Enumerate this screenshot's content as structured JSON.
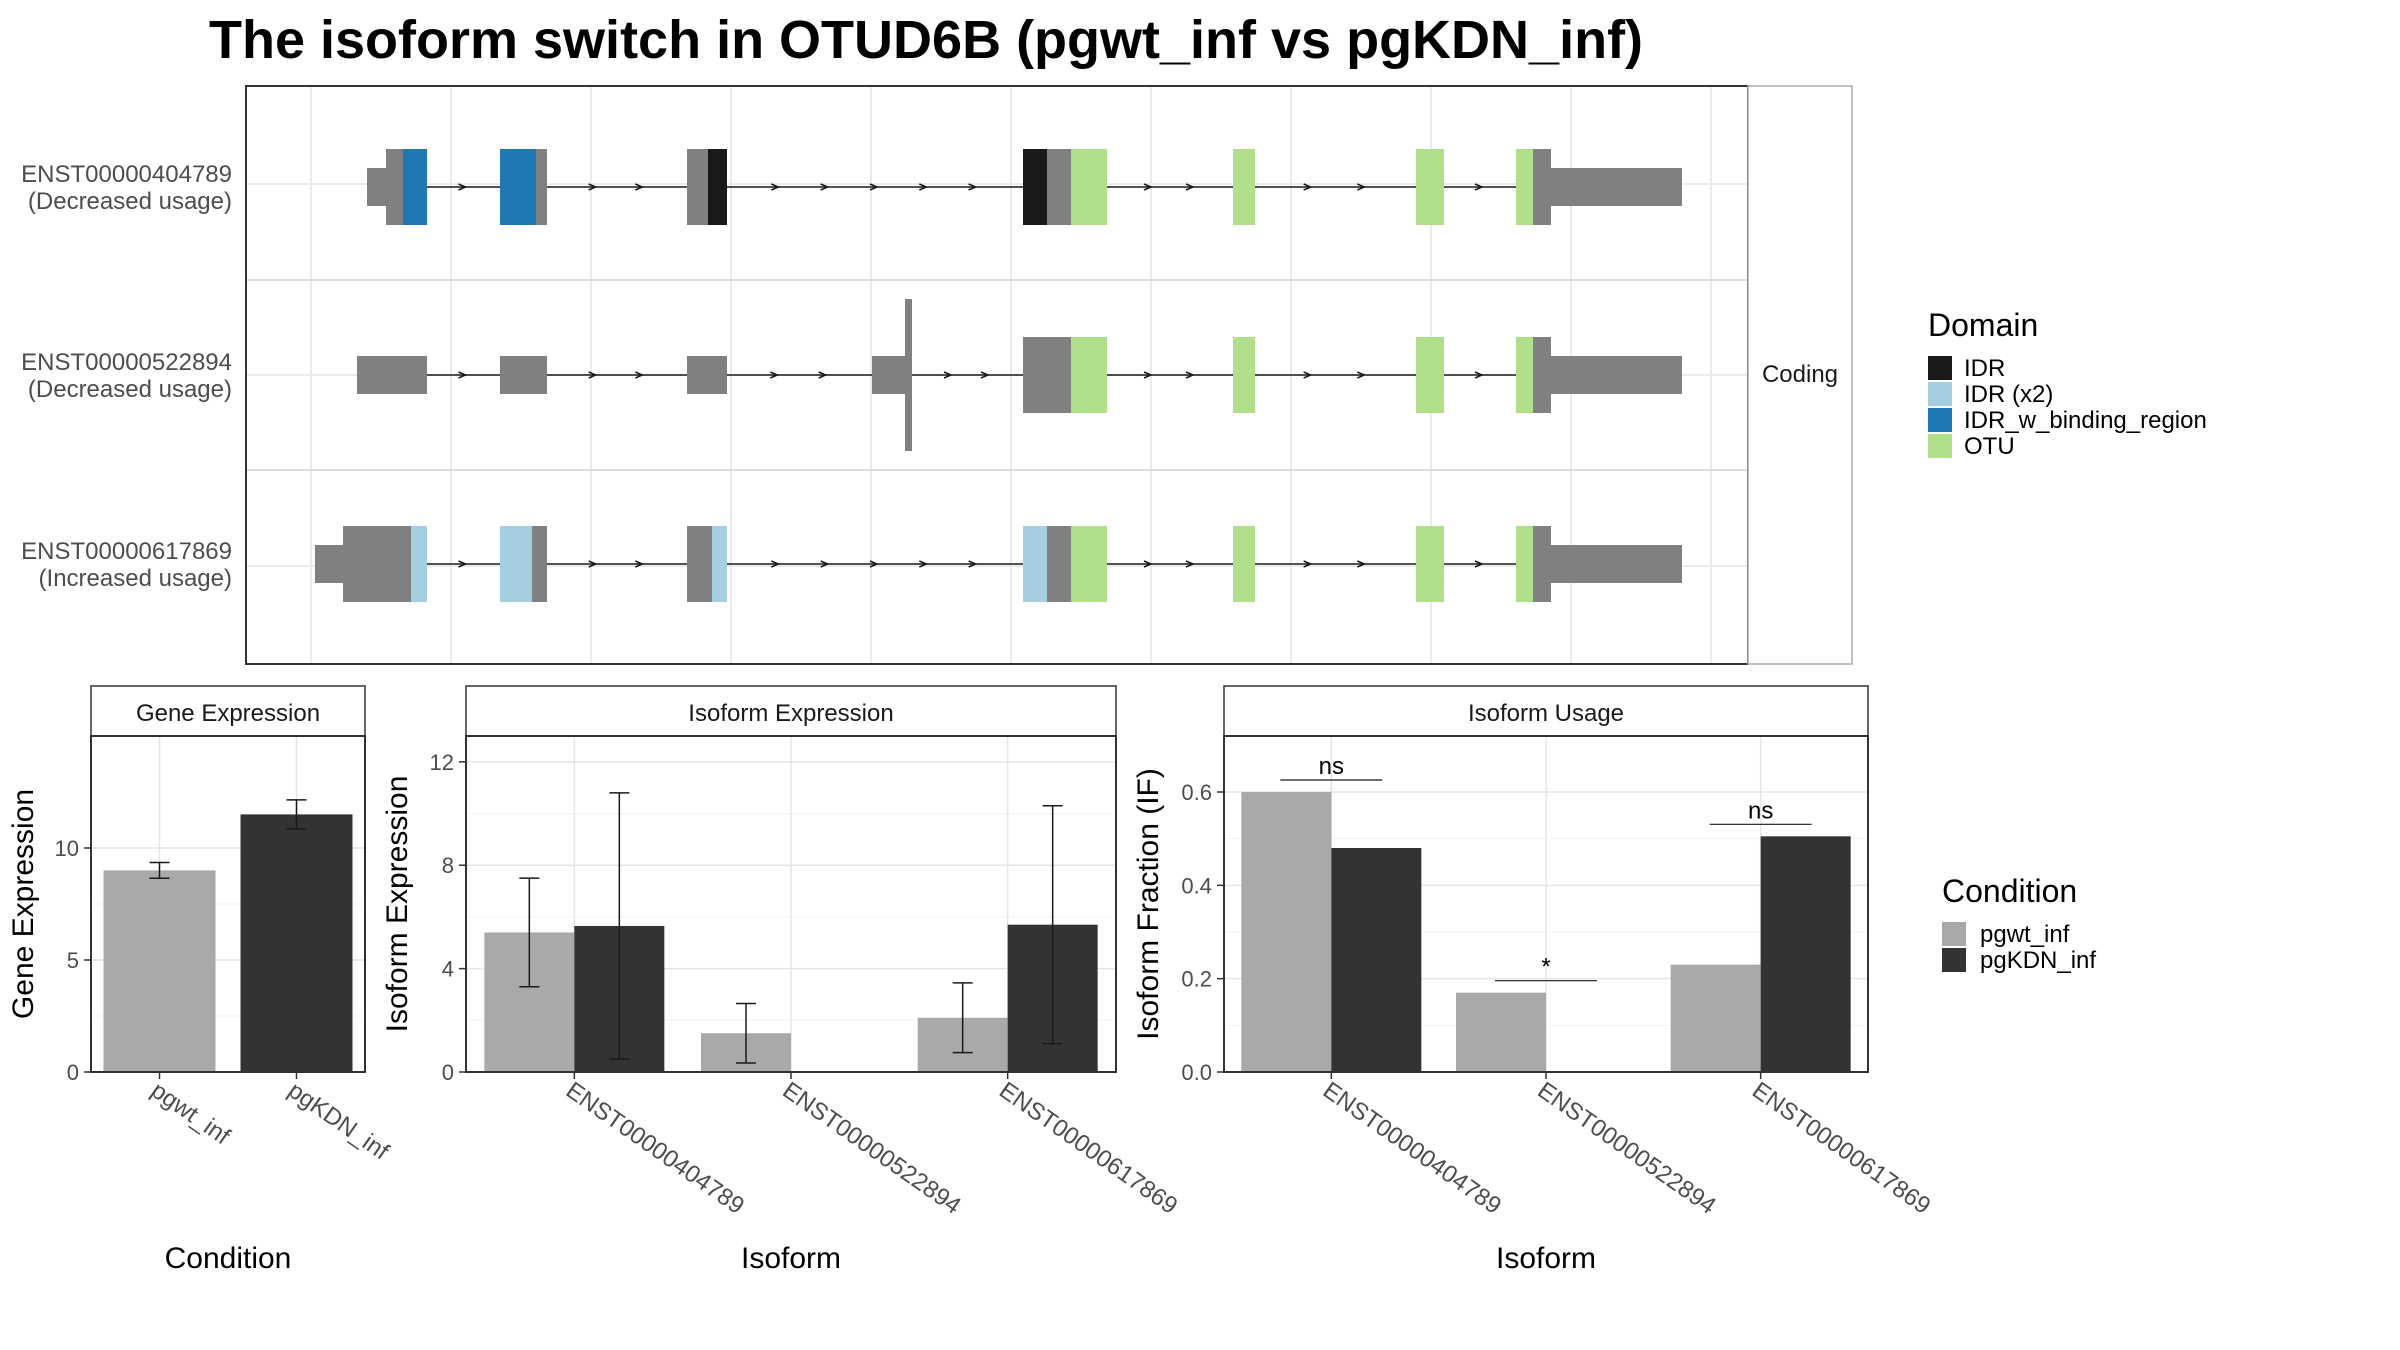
{
  "title": "The isoform switch in OTUD6B (pgwt_inf vs pgKDN_inf)",
  "structure": {
    "strip_label": "Coding",
    "isoforms": [
      {
        "id": "ENST00000404789",
        "usage": "(Decreased usage)"
      },
      {
        "id": "ENST00000522894",
        "usage": "(Decreased usage)"
      },
      {
        "id": "ENST00000617869",
        "usage": "(Increased usage)"
      }
    ]
  },
  "domain_legend": {
    "title": "Domain",
    "items": [
      {
        "label": "IDR",
        "color": "#1a1a1a"
      },
      {
        "label": "IDR (x2)",
        "color": "#a6cee3"
      },
      {
        "label": "IDR_w_binding_region",
        "color": "#1f78b4"
      },
      {
        "label": "OTU",
        "color": "#b2df8a"
      }
    ]
  },
  "condition_legend": {
    "title": "Condition",
    "items": [
      {
        "label": "pgwt_inf",
        "color": "#a9a9a9"
      },
      {
        "label": "pgKDN_inf",
        "color": "#333333"
      }
    ]
  },
  "chart_data": [
    {
      "type": "bar",
      "title": "Gene Expression",
      "xlabel": "Condition",
      "ylabel": "Gene Expression",
      "ylim": [
        0,
        15
      ],
      "yticks": [
        0,
        5,
        10
      ],
      "categories": [
        "pgwt_inf",
        "pgKDN_inf"
      ],
      "values": [
        9.0,
        11.5
      ],
      "error_low": [
        8.65,
        10.85
      ],
      "error_high": [
        9.35,
        12.15
      ],
      "colors": [
        "#a9a9a9",
        "#333333"
      ]
    },
    {
      "type": "bar",
      "title": "Isoform Expression",
      "xlabel": "Isoform",
      "ylabel": "Isoform Expression",
      "ylim": [
        0,
        13
      ],
      "yticks": [
        0,
        4,
        8,
        12
      ],
      "categories": [
        "ENST00000404789",
        "ENST00000522894",
        "ENST00000617869"
      ],
      "series": [
        {
          "name": "pgwt_inf",
          "color": "#a9a9a9",
          "values": [
            5.4,
            1.5,
            2.1
          ],
          "error_low": [
            3.3,
            0.35,
            0.75
          ],
          "error_high": [
            7.5,
            2.65,
            3.45
          ]
        },
        {
          "name": "pgKDN_inf",
          "color": "#333333",
          "values": [
            5.65,
            0.0,
            5.7
          ],
          "error_low": [
            0.5,
            0.0,
            1.1
          ],
          "error_high": [
            10.8,
            0.0,
            10.3
          ]
        }
      ]
    },
    {
      "type": "bar",
      "title": "Isoform Usage",
      "xlabel": "Isoform",
      "ylabel": "Isoform Fraction (IF)",
      "ylim": [
        0,
        0.72
      ],
      "yticks": [
        0.0,
        0.2,
        0.4,
        0.6
      ],
      "categories": [
        "ENST00000404789",
        "ENST00000522894",
        "ENST00000617869"
      ],
      "series": [
        {
          "name": "pgwt_inf",
          "color": "#a9a9a9",
          "values": [
            0.6,
            0.17,
            0.23
          ]
        },
        {
          "name": "pgKDN_inf",
          "color": "#333333",
          "values": [
            0.48,
            0.0,
            0.505
          ]
        }
      ],
      "significance": [
        "ns",
        "*",
        "ns"
      ]
    }
  ]
}
